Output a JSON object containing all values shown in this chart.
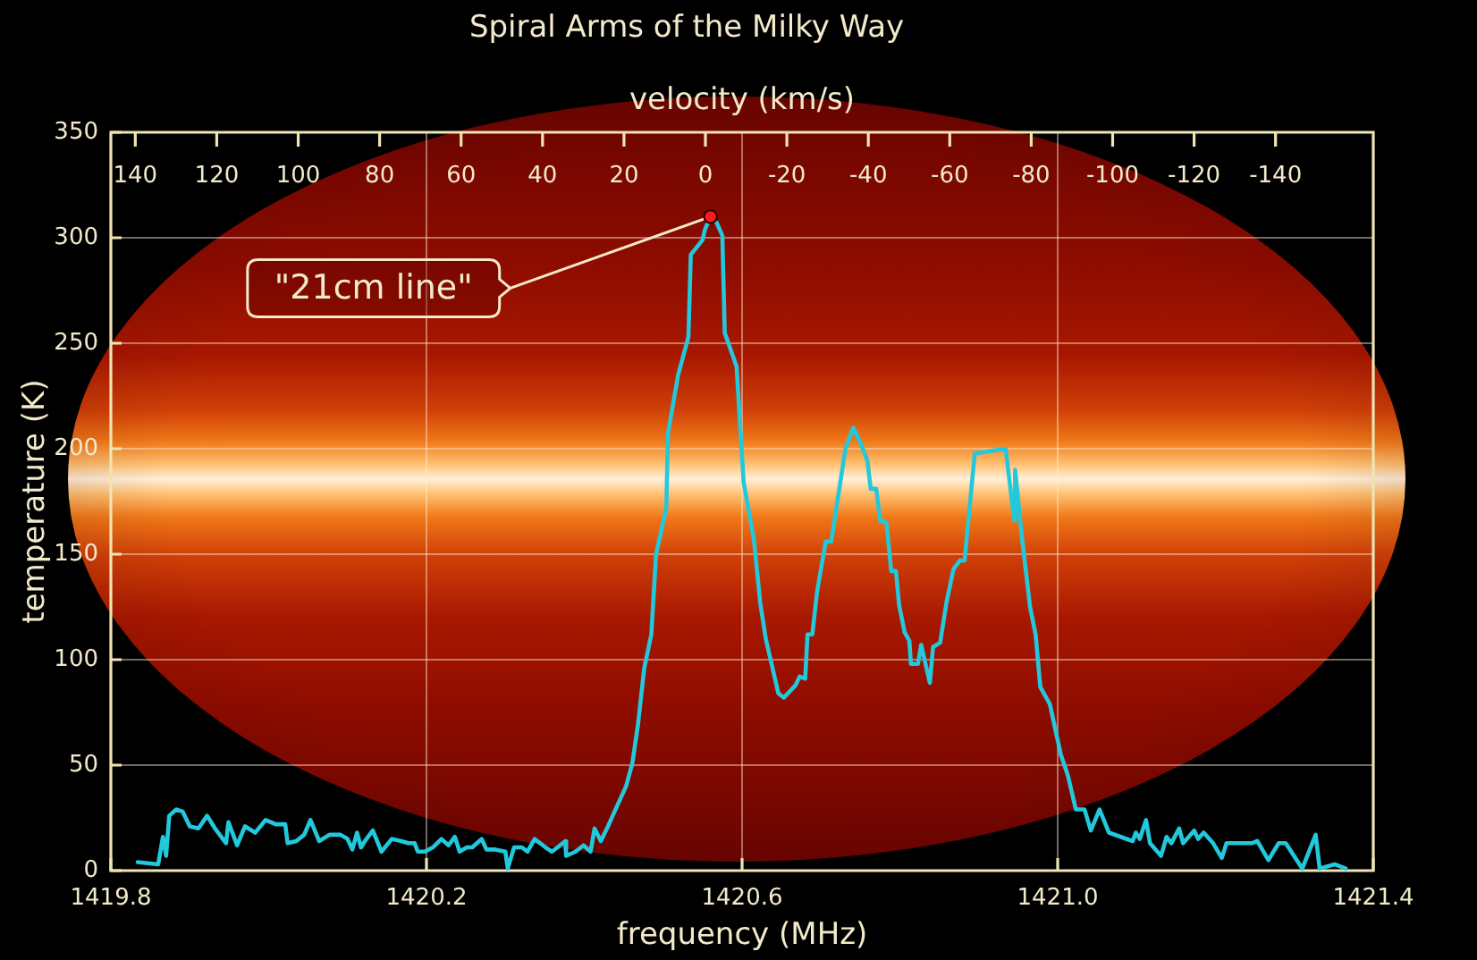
{
  "chart_data": {
    "type": "line",
    "title": "Spiral Arms of the Milky Way",
    "xlabel": "frequency (MHz)",
    "ylabel": "temperature (K)",
    "x2label": "velocity (km/s)",
    "xlim": [
      1419.8,
      1421.4
    ],
    "xticks": [
      1419.8,
      1420.2,
      1420.6,
      {
        "value": 1421,
        "label": "1421.0"
      },
      1421.4
    ],
    "ylim": [
      0,
      350
    ],
    "yticks": [
      0,
      50,
      100,
      150,
      200,
      250,
      300,
      350
    ],
    "x2lim": [
      146,
      -164
    ],
    "x2ticks": [
      140,
      120,
      100,
      80,
      60,
      40,
      20,
      0,
      -20,
      -40,
      -60,
      -80,
      -100,
      -120,
      -140
    ],
    "grid": true,
    "annotations": [
      {
        "text": "\"21cm line\"",
        "x": 1420.56,
        "y": 310
      }
    ],
    "x": [
      1419.834,
      1419.86,
      1419.866,
      1419.87,
      1419.874,
      1419.883,
      1419.891,
      1419.9,
      1419.911,
      1419.922,
      1419.932,
      1419.946,
      1419.949,
      1419.96,
      1419.97,
      1419.983,
      1419.996,
      1420.009,
      1420.021,
      1420.024,
      1420.035,
      1420.045,
      1420.053,
      1420.064,
      1420.077,
      1420.091,
      1420.1,
      1420.106,
      1420.112,
      1420.117,
      1420.122,
      1420.132,
      1420.143,
      1420.156,
      1420.168,
      1420.177,
      1420.185,
      1420.189,
      1420.198,
      1420.208,
      1420.219,
      1420.228,
      1420.236,
      1420.242,
      1420.251,
      1420.258,
      1420.264,
      1420.27,
      1420.276,
      1420.287,
      1420.3,
      1420.303,
      1420.311,
      1420.321,
      1420.328,
      1420.337,
      1420.351,
      1420.359,
      1420.366,
      1420.376,
      1420.377,
      1420.389,
      1420.399,
      1420.408,
      1420.413,
      1420.421,
      1420.43,
      1420.442,
      1420.453,
      1420.461,
      1420.468,
      1420.476,
      1420.485,
      1420.491,
      1420.504,
      1420.506,
      1420.519,
      1420.532,
      1420.535,
      1420.55,
      1420.553,
      1420.56,
      1420.568,
      1420.575,
      1420.578,
      1420.593,
      1420.602,
      1420.615,
      1420.623,
      1420.63,
      1420.646,
      1420.653,
      1420.668,
      1420.673,
      1420.68,
      1420.683,
      1420.689,
      1420.695,
      1420.706,
      1420.713,
      1420.731,
      1420.741,
      1420.751,
      1420.759,
      1420.763,
      1420.77,
      1420.775,
      1420.783,
      1420.789,
      1420.795,
      1420.799,
      1420.806,
      1420.812,
      1420.814,
      1420.823,
      1420.827,
      1420.838,
      1420.842,
      1420.851,
      1420.859,
      1420.868,
      1420.876,
      1420.882,
      1420.895,
      1420.899,
      1420.934,
      1420.945,
      1420.946,
      1420.955,
      1420.965,
      1420.972,
      1420.978,
      1420.99,
      1421.004,
      1421.013,
      1421.023,
      1421.034,
      1421.042,
      1421.053,
      1421.065,
      1421.095,
      1421.099,
      1421.104,
      1421.112,
      1421.117,
      1421.131,
      1421.138,
      1421.144,
      1421.154,
      1421.159,
      1421.173,
      1421.178,
      1421.185,
      1421.197,
      1421.208,
      1421.214,
      1421.231,
      1421.246,
      1421.253,
      1421.267,
      1421.28,
      1421.289,
      1421.31,
      1421.327,
      1421.332,
      1421.351,
      1421.365
    ],
    "series": [
      {
        "color": "#22c8dc",
        "values": [
          4,
          3,
          16,
          7,
          26,
          29,
          28,
          21,
          20,
          26,
          20,
          13,
          23,
          12,
          21,
          18,
          24,
          22,
          22,
          13,
          14,
          17,
          24,
          14,
          17,
          17,
          15,
          10,
          18,
          11,
          14,
          19,
          9,
          15,
          14,
          13,
          13,
          9,
          9,
          11,
          15,
          12,
          16,
          9,
          11,
          11,
          13,
          15,
          10,
          10,
          9,
          1,
          11,
          11,
          9,
          15,
          11,
          9,
          11,
          14,
          7,
          9,
          12,
          9,
          20,
          14,
          21,
          31,
          40,
          51,
          69,
          96,
          112,
          150,
          172,
          207,
          235,
          253,
          292,
          299,
          304,
          310,
          307,
          301,
          255,
          239,
          184,
          157,
          127,
          110,
          84,
          82,
          88,
          92,
          91,
          112,
          112,
          132,
          156,
          156,
          200,
          210,
          202,
          194,
          181,
          181,
          166,
          165,
          142,
          142,
          126,
          113,
          109,
          98,
          98,
          107,
          89,
          106,
          108,
          127,
          143,
          147,
          147,
          198,
          198,
          200,
          166,
          190,
          157,
          125,
          112,
          87,
          79,
          55,
          45,
          29,
          29,
          19,
          29,
          18,
          14,
          18,
          15,
          24,
          13,
          7,
          16,
          13,
          20,
          13,
          19,
          15,
          18,
          13,
          6,
          13,
          13,
          13,
          14,
          5,
          13,
          13,
          1,
          17,
          1,
          3,
          1
        ]
      }
    ]
  }
}
